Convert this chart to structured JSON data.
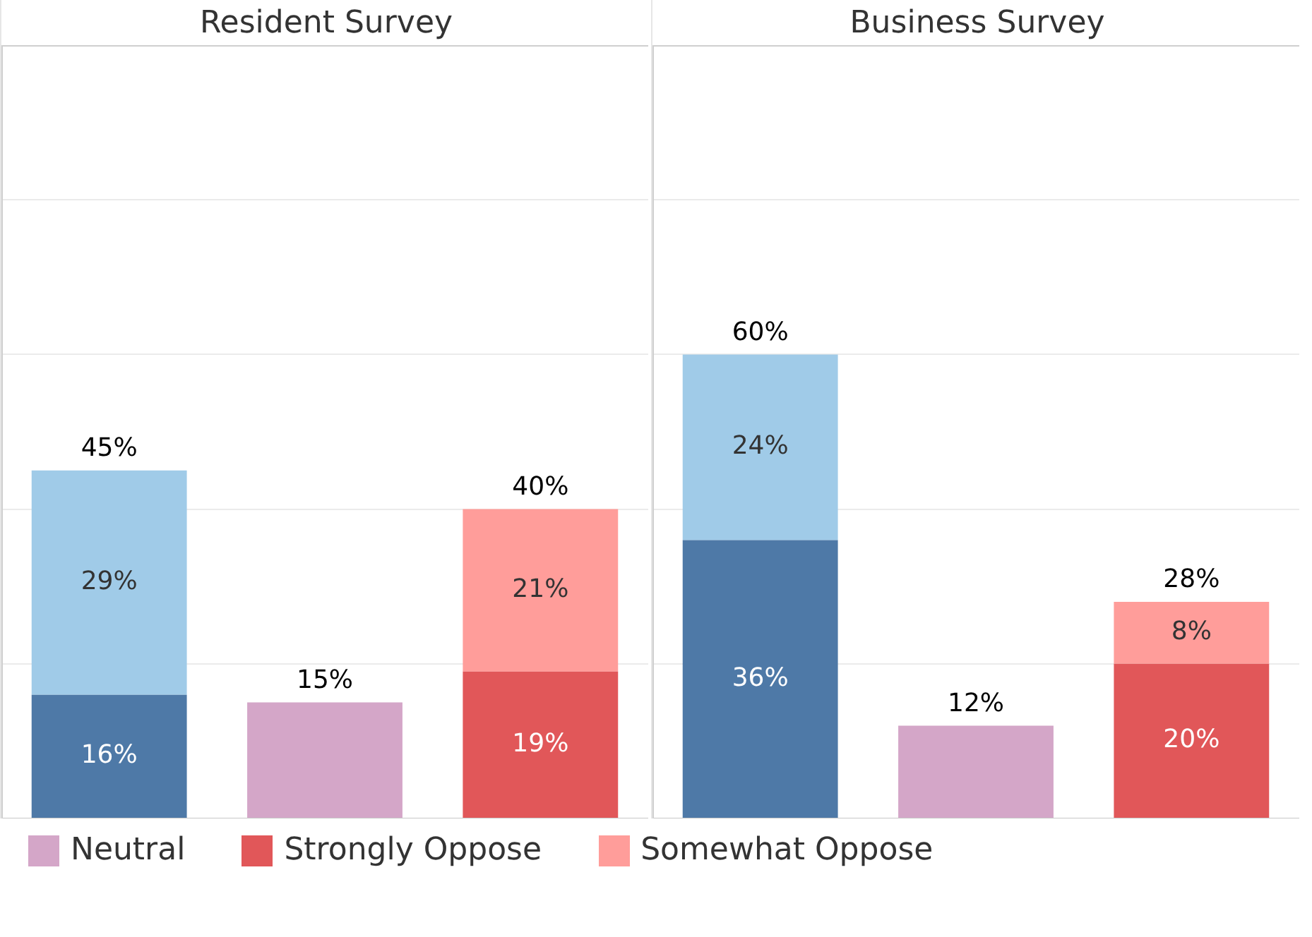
{
  "chart_data": [
    {
      "type": "bar",
      "title": "Resident Survey",
      "categories": [
        null,
        null,
        null
      ],
      "stacked": true,
      "ylim": [
        0,
        100
      ],
      "yticks": [
        0,
        20,
        40,
        60,
        80
      ],
      "tick_labels": false,
      "grid": "y",
      "legend": "bottom",
      "series": [
        {
          "color": "#4e79a7",
          "values": [
            16,
            null,
            null
          ],
          "value_labels": [
            "16%",
            null,
            null
          ]
        },
        {
          "color": "#a0cbe8",
          "values": [
            29,
            null,
            null
          ],
          "value_labels": [
            "29%",
            null,
            null
          ]
        },
        {
          "name": "Neutral",
          "color": "#d4a6c8",
          "values": [
            null,
            15,
            null
          ],
          "value_labels": [
            null,
            null,
            null
          ]
        },
        {
          "name": "Strongly Oppose",
          "color": "#e15759",
          "values": [
            null,
            null,
            19
          ],
          "value_labels": [
            null,
            null,
            "19%"
          ]
        },
        {
          "name": "Somewhat Oppose",
          "color": "#ff9d9a",
          "values": [
            null,
            null,
            21
          ],
          "value_labels": [
            null,
            null,
            "21%"
          ]
        }
      ],
      "totals": [
        "45%",
        "15%",
        "40%"
      ]
    },
    {
      "type": "bar",
      "title": "Business Survey",
      "categories": [
        null,
        null,
        null
      ],
      "stacked": true,
      "ylim": [
        0,
        100
      ],
      "yticks": [
        0,
        20,
        40,
        60,
        80
      ],
      "tick_labels": false,
      "grid": "y",
      "series": [
        {
          "color": "#4e79a7",
          "values": [
            36,
            null,
            null
          ],
          "value_labels": [
            "36%",
            null,
            null
          ]
        },
        {
          "color": "#a0cbe8",
          "values": [
            24,
            null,
            null
          ],
          "value_labels": [
            "24%",
            null,
            null
          ]
        },
        {
          "color": "#d4a6c8",
          "values": [
            null,
            12,
            null
          ],
          "value_labels": [
            null,
            null,
            null
          ]
        },
        {
          "color": "#e15759",
          "values": [
            null,
            null,
            20
          ],
          "value_labels": [
            null,
            null,
            "20%"
          ]
        },
        {
          "color": "#ff9d9a",
          "values": [
            null,
            null,
            8
          ],
          "value_labels": [
            null,
            null,
            "8%"
          ]
        }
      ],
      "totals": [
        "60%",
        "12%",
        "28%"
      ]
    }
  ]
}
